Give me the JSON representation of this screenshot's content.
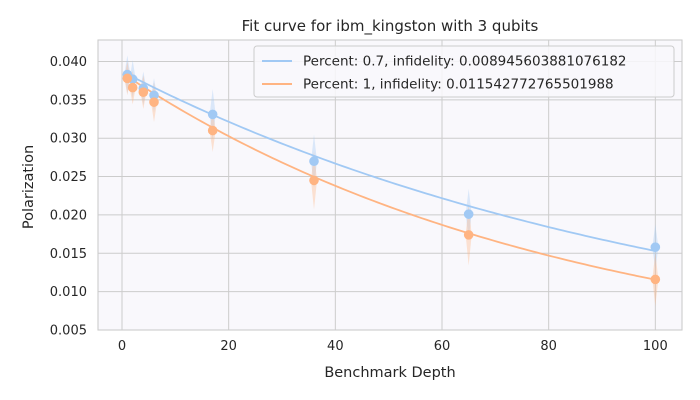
{
  "chart_data": {
    "type": "line",
    "title": "Fit curve for ibm_kingston with 3 qubits",
    "xlabel": "Benchmark Depth",
    "ylabel": "Polarization",
    "xlim": [
      -4.5,
      105
    ],
    "ylim": [
      0.005,
      0.0428
    ],
    "x_ticks": [
      0,
      20,
      40,
      60,
      80,
      100
    ],
    "y_ticks": [
      0.005,
      0.01,
      0.015,
      0.02,
      0.025,
      0.03,
      0.035,
      0.04
    ],
    "x_tick_labels": [
      "0",
      "20",
      "40",
      "60",
      "80",
      "100"
    ],
    "y_tick_labels": [
      "0.005",
      "0.010",
      "0.015",
      "0.020",
      "0.025",
      "0.030",
      "0.035",
      "0.040"
    ],
    "grid": true,
    "legend_position": "top-right",
    "series": [
      {
        "name": "Percent: 0.7, infidelity: 0.008945603881076182",
        "color": "#a1c9f4",
        "x": [
          1,
          2,
          4,
          6,
          17,
          36,
          65,
          100
        ],
        "y": [
          0.0383,
          0.0377,
          0.0365,
          0.0356,
          0.0331,
          0.027,
          0.0201,
          0.0158
        ],
        "err": [
          0.0025,
          0.0025,
          0.0022,
          0.0022,
          0.0033,
          0.0035,
          0.0033,
          0.003
        ],
        "fit_y0": 0.0387,
        "fit_rate": 0.009281
      },
      {
        "name": "Percent: 1, infidelity: 0.011542772765501988",
        "color": "#ffb482",
        "x": [
          1,
          2,
          4,
          6,
          17,
          36,
          65,
          100
        ],
        "y": [
          0.0378,
          0.0366,
          0.036,
          0.0347,
          0.031,
          0.0245,
          0.0174,
          0.0116
        ],
        "err": [
          0.0022,
          0.0022,
          0.0022,
          0.0026,
          0.0028,
          0.0038,
          0.004,
          0.0035
        ],
        "fit_y0": 0.0385,
        "fit_rate": 0.012032
      }
    ]
  }
}
